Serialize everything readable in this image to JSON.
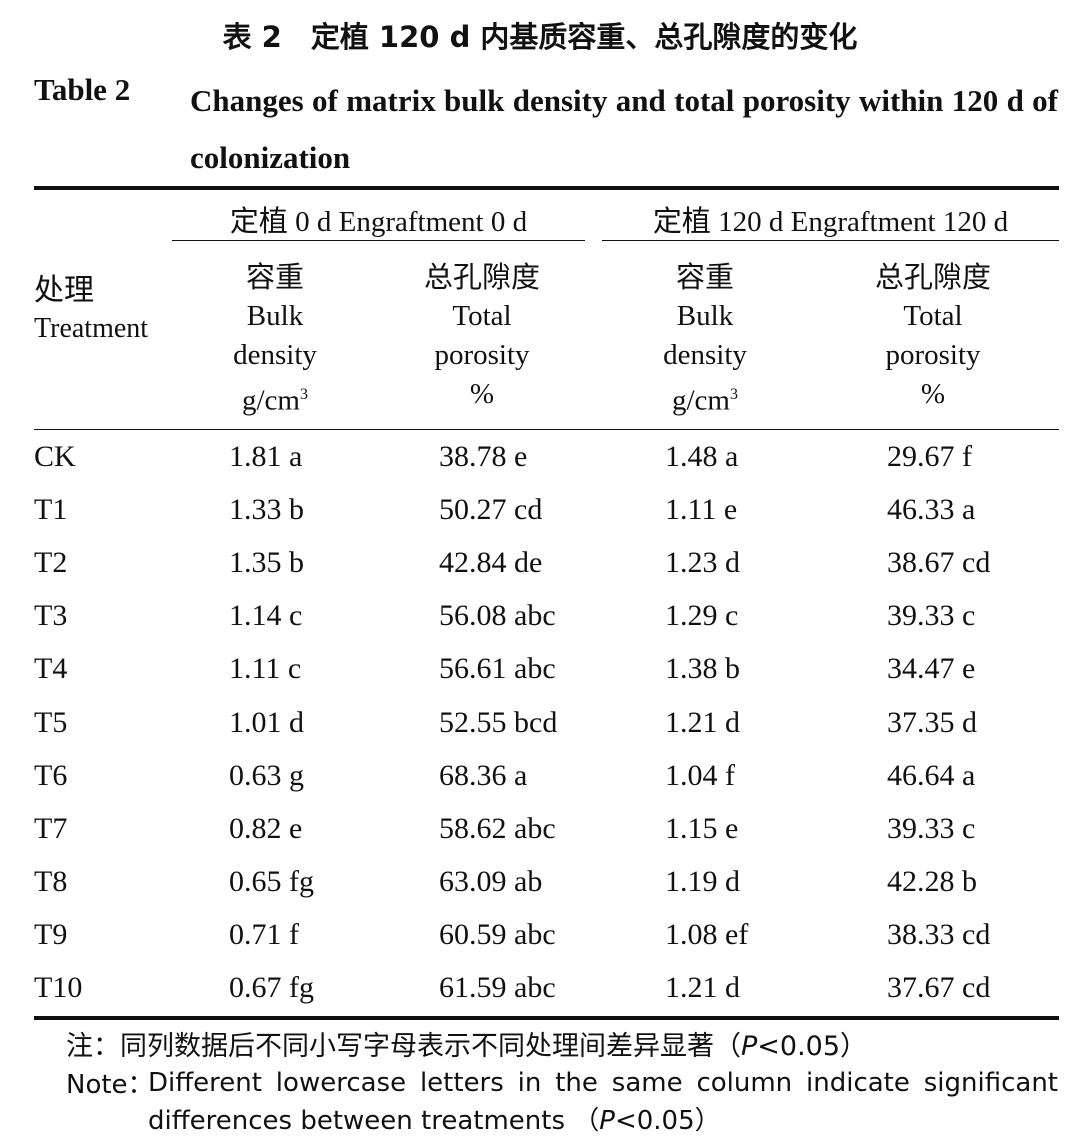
{
  "title": {
    "cn": "表 2　定植 120 d 内基质容重、总孔隙度的变化",
    "en_label": "Table 2",
    "en_text": "Changes of matrix bulk density and total porosity within 120 d of colonization"
  },
  "header": {
    "treatment_cn": "处理",
    "treatment_en": "Treatment",
    "groups": [
      {
        "label": "定植 0 d Engraftment 0 d"
      },
      {
        "label": "定植 120 d Engraftment 120 d"
      }
    ],
    "bulk_cn": "容重",
    "bulk_en1": "Bulk",
    "bulk_en2": "density",
    "bulk_unit": "g/cm",
    "bulk_unit_sup": "3",
    "porosity_cn": "总孔隙度",
    "porosity_en1": "Total",
    "porosity_en2": "porosity",
    "porosity_unit": "%"
  },
  "rows": [
    {
      "t": "CK",
      "bd0": "1.81 a",
      "tp0": "38.78 e",
      "bd120": "1.48 a",
      "tp120": "29.67 f"
    },
    {
      "t": "T1",
      "bd0": "1.33 b",
      "tp0": "50.27 cd",
      "bd120": "1.11 e",
      "tp120": "46.33 a"
    },
    {
      "t": "T2",
      "bd0": "1.35 b",
      "tp0": "42.84 de",
      "bd120": "1.23 d",
      "tp120": "38.67 cd"
    },
    {
      "t": "T3",
      "bd0": "1.14 c",
      "tp0": "56.08 abc",
      "bd120": "1.29 c",
      "tp120": "39.33 c"
    },
    {
      "t": "T4",
      "bd0": "1.11 c",
      "tp0": "56.61 abc",
      "bd120": "1.38 b",
      "tp120": "34.47 e"
    },
    {
      "t": "T5",
      "bd0": "1.01 d",
      "tp0": "52.55 bcd",
      "bd120": "1.21 d",
      "tp120": "37.35 d"
    },
    {
      "t": "T6",
      "bd0": "0.63 g",
      "tp0": "68.36 a",
      "bd120": "1.04 f",
      "tp120": "46.64 a"
    },
    {
      "t": "T7",
      "bd0": "0.82 e",
      "tp0": "58.62 abc",
      "bd120": "1.15 e",
      "tp120": "39.33 c"
    },
    {
      "t": "T8",
      "bd0": "0.65 fg",
      "tp0": "63.09 ab",
      "bd120": "1.19 d",
      "tp120": "42.28 b"
    },
    {
      "t": "T9",
      "bd0": "0.71 f",
      "tp0": "60.59 abc",
      "bd120": "1.08 ef",
      "tp120": "38.33 cd"
    },
    {
      "t": "T10",
      "bd0": "0.67 fg",
      "tp0": "61.59 abc",
      "bd120": "1.21 d",
      "tp120": "37.67 cd"
    }
  ],
  "note": {
    "cn_prefix": "注：同列数据后不同小写字母表示不同处理间差异显著（",
    "cn_p": "P",
    "cn_suffix": "<0.05）",
    "en_label": "Note：",
    "en_text_1": "Different lowercase letters in the same column indicate significant differences between treatments （",
    "en_p": "P",
    "en_suffix": "<0.05）"
  }
}
